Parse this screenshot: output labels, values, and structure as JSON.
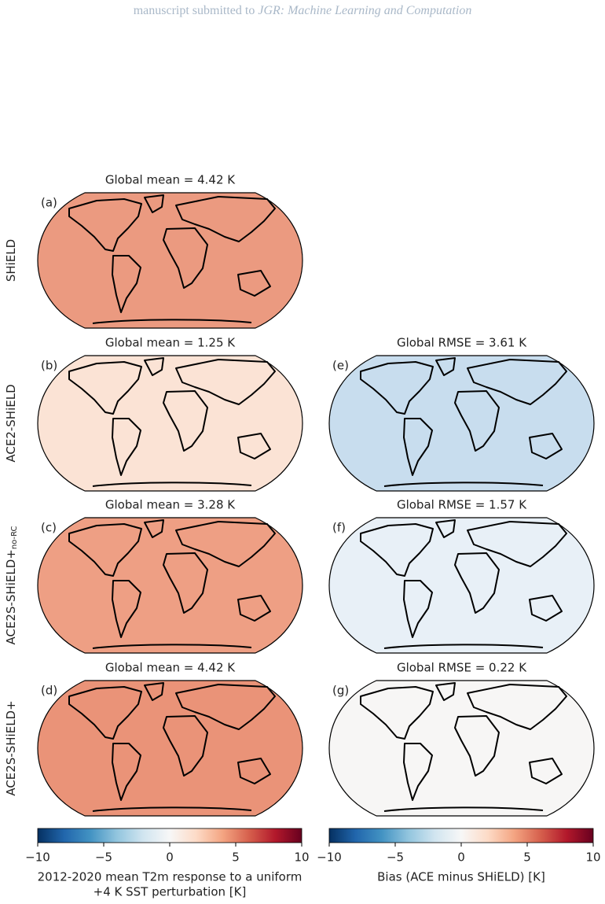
{
  "header": {
    "text": "manuscript submitted to ",
    "journal": "JGR: Machine Learning and Computation"
  },
  "rows": [
    {
      "label": "SHiELD"
    },
    {
      "label": "ACE2-SHiELD"
    },
    {
      "label": "ACE2S-SHiELD+",
      "subscript": "no-RC"
    },
    {
      "label": "ACE2S-SHiELD+"
    }
  ],
  "panels": [
    {
      "letter": "(a)",
      "title": "Global mean = 4.42 K"
    },
    {
      "letter": "(b)",
      "title": "Global mean = 1.25 K"
    },
    {
      "letter": "(c)",
      "title": "Global mean = 3.28 K"
    },
    {
      "letter": "(d)",
      "title": "Global mean = 4.42 K"
    },
    {
      "letter": "(e)",
      "title": "Global RMSE = 3.61 K"
    },
    {
      "letter": "(f)",
      "title": "Global RMSE = 1.57 K"
    },
    {
      "letter": "(g)",
      "title": "Global RMSE = 0.22 K"
    }
  ],
  "colorbars": [
    {
      "lim": [
        -10,
        10
      ],
      "ticks": [
        {
          "value": -10,
          "label": "−10"
        },
        {
          "value": -5,
          "label": "−5"
        },
        0,
        5,
        10
      ],
      "label": [
        "2012-2020 mean T2m response to a uniform",
        "+4 K SST perturbation [K]"
      ]
    },
    {
      "lim": [
        -10,
        10
      ],
      "ticks": [
        {
          "value": -10,
          "label": "−10"
        },
        {
          "value": -5,
          "label": "−5"
        },
        0,
        5,
        10
      ],
      "label": [
        "Bias (ACE minus SHiELD) [K]"
      ]
    }
  ]
}
